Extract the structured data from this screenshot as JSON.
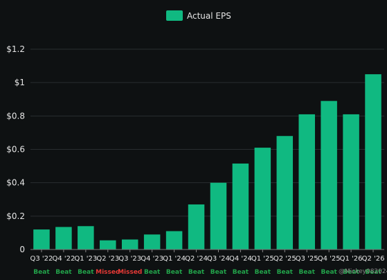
{
  "chart_data": {
    "type": "bar",
    "categories": [
      "Q3 '22",
      "Q4 '22",
      "Q1 '23",
      "Q2 '23",
      "Q3 '23",
      "Q4 '23",
      "Q1 '24",
      "Q2 '24",
      "Q3 '24",
      "Q4 '24",
      "Q1 '25",
      "Q2 '25",
      "Q3 '25",
      "Q4 '25",
      "Q1 '26",
      "Q2 '26"
    ],
    "series": [
      {
        "name": "Actual EPS",
        "values": [
          0.12,
          0.135,
          0.14,
          0.055,
          0.06,
          0.09,
          0.11,
          0.27,
          0.4,
          0.515,
          0.61,
          0.68,
          0.81,
          0.89,
          0.81,
          1.05
        ]
      }
    ],
    "status": [
      "Beat",
      "Beat",
      "Beat",
      "Missed",
      "Missed",
      "Beat",
      "Beat",
      "Beat",
      "Beat",
      "Beat",
      "Beat",
      "Beat",
      "Beat",
      "Beat",
      "Beat",
      "Beat"
    ],
    "yticks": [
      0,
      0.2,
      0.4,
      0.6,
      0.8,
      1,
      1.2
    ],
    "ytick_labels": [
      "0",
      "$0.2",
      "$0.4",
      "$0.6",
      "$0.8",
      "$1",
      "$1.2"
    ],
    "ylim": [
      0,
      1.2
    ],
    "grid": true,
    "legend": "top-center"
  },
  "colors": {
    "bar": "#10b981",
    "beat": "#22a34a",
    "missed": "#e53935",
    "grid": "#2a2e30",
    "background": "#0e1112"
  },
  "watermark": "@Mickey082024"
}
